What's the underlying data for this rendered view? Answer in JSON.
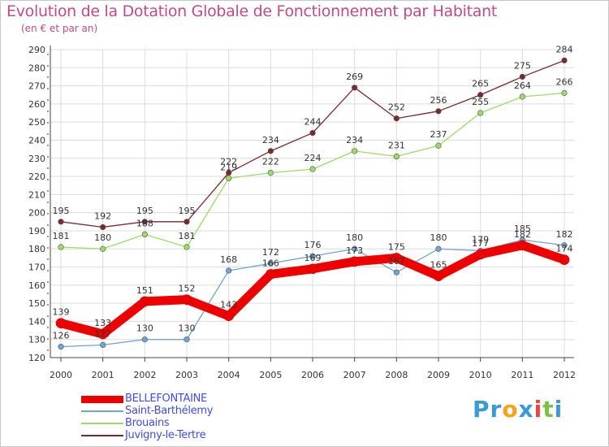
{
  "chart_data": {
    "type": "line",
    "title": "Evolution de la Dotation Globale de Fonctionnement par Habitant",
    "subtitle": "(en € et par an)",
    "x": [
      "2000",
      "2001",
      "2002",
      "2003",
      "2004",
      "2005",
      "2006",
      "2007",
      "2008",
      "2009",
      "2010",
      "2011",
      "2012"
    ],
    "ylim": [
      120,
      290
    ],
    "yticks": [
      120,
      130,
      140,
      150,
      160,
      170,
      180,
      190,
      200,
      210,
      220,
      230,
      240,
      250,
      260,
      270,
      280,
      290
    ],
    "grid": true,
    "legend_position": "bottom-left",
    "series": [
      {
        "name": "BELLEFONTAINE",
        "color": "#ee0000",
        "values": [
          139,
          133,
          151,
          152,
          143,
          166,
          169,
          173,
          175,
          165,
          177,
          182,
          174
        ]
      },
      {
        "name": "Saint-Barthélemy",
        "color": "#6fa4d4",
        "values": [
          126,
          127,
          130,
          130,
          168,
          172,
          176,
          180,
          167,
          180,
          179,
          185,
          182
        ]
      },
      {
        "name": "Brouains",
        "color": "#99dd66",
        "values": [
          181,
          180,
          188,
          181,
          219,
          222,
          224,
          234,
          231,
          237,
          255,
          264,
          266
        ]
      },
      {
        "name": "Juvigny-le-Tertre",
        "color": "#7a2a2a",
        "values": [
          195,
          192,
          195,
          195,
          222,
          234,
          244,
          269,
          252,
          256,
          265,
          275,
          284
        ]
      }
    ]
  },
  "logo": {
    "parts": [
      "Pr",
      "o",
      "x",
      "i",
      "t",
      "i"
    ],
    "colors": [
      "#3a9ad9",
      "#f7a21b",
      "#3a9ad9",
      "#e8473c",
      "#7bc143",
      "#3a9ad9"
    ]
  }
}
